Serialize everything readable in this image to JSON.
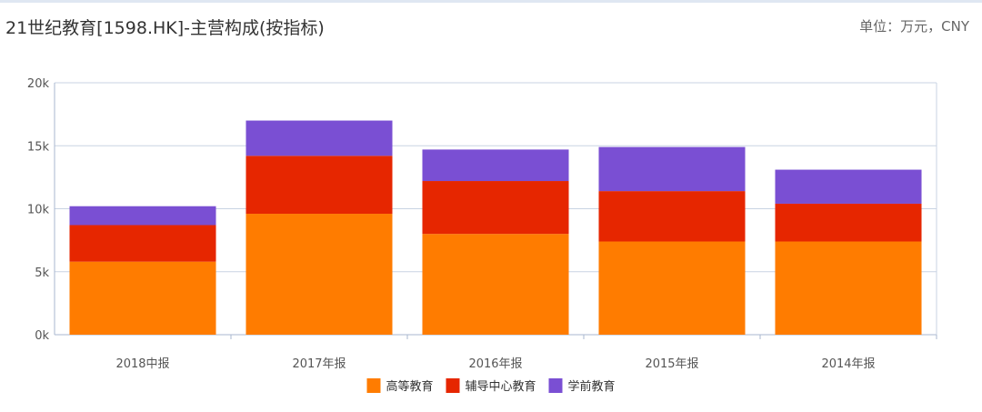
{
  "header": {
    "title": "21世纪教育[1598.HK]-主营构成(按指标)",
    "unit": "单位：万元，CNY"
  },
  "colors": {
    "higher_education": "#ff7c00",
    "tutoring_center": "#e62600",
    "preschool": "#7a4fd3",
    "grid": "#c9d3e3",
    "axis": "#a9b7cf"
  },
  "chart_data": {
    "type": "bar",
    "stacked": true,
    "categories": [
      "2018中报",
      "2017年报",
      "2016年报",
      "2015年报",
      "2014年报"
    ],
    "series": [
      {
        "name": "高等教育",
        "color": "#ff7c00",
        "values": [
          5800,
          9600,
          8000,
          7400,
          7400
        ]
      },
      {
        "name": "辅导中心教育",
        "color": "#e62600",
        "values": [
          2900,
          4600,
          4200,
          4000,
          3000
        ]
      },
      {
        "name": "学前教育",
        "color": "#7a4fd3",
        "values": [
          1500,
          2800,
          2500,
          3500,
          2700
        ]
      }
    ],
    "ylim": [
      0,
      20000
    ],
    "yticks": [
      0,
      5000,
      10000,
      15000,
      20000
    ],
    "ytick_labels": [
      "0k",
      "5k",
      "10k",
      "15k",
      "20k"
    ],
    "grid": true,
    "legend": "bottom-center"
  }
}
